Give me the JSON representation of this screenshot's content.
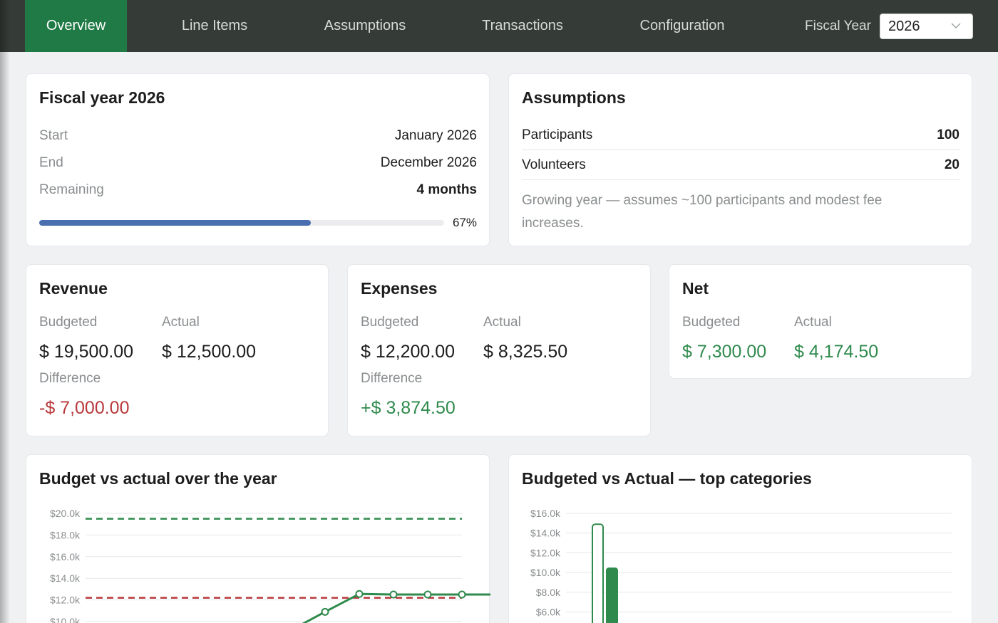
{
  "nav": {
    "tabs": [
      {
        "label": "Overview",
        "active": true
      },
      {
        "label": "Line Items",
        "active": false
      },
      {
        "label": "Assumptions",
        "active": false
      },
      {
        "label": "Transactions",
        "active": false
      },
      {
        "label": "Configuration",
        "active": false
      }
    ],
    "fiscal_year_label": "Fiscal Year",
    "fiscal_year_value": "2026",
    "colors": {
      "bar": "#353b37",
      "active_tab": "#1f7a45"
    }
  },
  "fiscal_card": {
    "title": "Fiscal year 2026",
    "rows": [
      {
        "label": "Start",
        "value": "January 2026"
      },
      {
        "label": "End",
        "value": "December 2026"
      },
      {
        "label": "Remaining",
        "value": "4 months"
      }
    ],
    "progress_percent": 67,
    "progress_text": "67%",
    "progress_color": "#4a6fb0"
  },
  "assumptions_card": {
    "title": "Assumptions",
    "rows": [
      {
        "label": "Participants",
        "value": "100"
      },
      {
        "label": "Volunteers",
        "value": "20"
      }
    ],
    "note": "Growing year — assumes ~100 participants and modest fee increases."
  },
  "revenue_card": {
    "title": "Revenue",
    "budgeted_label": "Budgeted",
    "actual_label": "Actual",
    "budgeted": "$ 19,500.00",
    "actual": "$ 12,500.00",
    "difference_label": "Difference",
    "difference": "-$ 7,000.00"
  },
  "expenses_card": {
    "title": "Expenses",
    "budgeted_label": "Budgeted",
    "actual_label": "Actual",
    "budgeted": "$ 12,200.00",
    "actual": "$ 8,325.50",
    "difference_label": "Difference",
    "difference": "+$ 3,874.50"
  },
  "net_card": {
    "title": "Net",
    "budgeted_label": "Budgeted",
    "actual_label": "Actual",
    "budgeted": "$ 7,300.00",
    "actual": "$ 4,174.50"
  },
  "colors": {
    "positive": "#2f8a4d",
    "negative": "#b8383b"
  },
  "chart_data": [
    {
      "type": "line",
      "title": "Budget vs actual over the year",
      "y_tick_labels": [
        "$20.0k",
        "$18.0k",
        "$16.0k",
        "$14.0k",
        "$12.0k",
        "$10.0k"
      ],
      "y_ticks": [
        20000,
        18000,
        16000,
        14000,
        12000,
        10000
      ],
      "ylim": [
        10000,
        20000
      ],
      "x_points": 12,
      "series": [
        {
          "role": "budgeted_revenue",
          "style": "dashed",
          "color": "#2f8a4d",
          "values": [
            19500,
            19500,
            19500,
            19500,
            19500,
            19500,
            19500,
            19500,
            19500,
            19500,
            19500,
            19500
          ]
        },
        {
          "role": "budgeted_expenses",
          "style": "dashed",
          "color": "#b8383b",
          "values": [
            12200,
            12200,
            12200,
            12200,
            12200,
            12200,
            12200,
            12200,
            12200,
            12200,
            12200,
            12200
          ]
        },
        {
          "role": "actual_revenue",
          "style": "solid",
          "color": "#2f8a4d",
          "x_start": 6,
          "values": [
            9200,
            10900,
            12550,
            12500,
            12500,
            12500,
            12500
          ],
          "marker_from": 1
        }
      ]
    },
    {
      "type": "bar",
      "title": "Budgeted vs Actual — top categories",
      "y_tick_labels": [
        "$16.0k",
        "$14.0k",
        "$12.0k",
        "$10.0k",
        "$8.0k",
        "$6.0k"
      ],
      "y_ticks": [
        16000,
        14000,
        12000,
        10000,
        8000,
        6000
      ],
      "ylim": [
        0,
        16000
      ],
      "series": [
        {
          "role": "budgeted",
          "style": "outline",
          "color": "#2f8a4d",
          "values": [
            14900
          ]
        },
        {
          "role": "actual",
          "style": "filled",
          "color": "#2f8a4d",
          "values": [
            10500
          ]
        }
      ]
    }
  ]
}
